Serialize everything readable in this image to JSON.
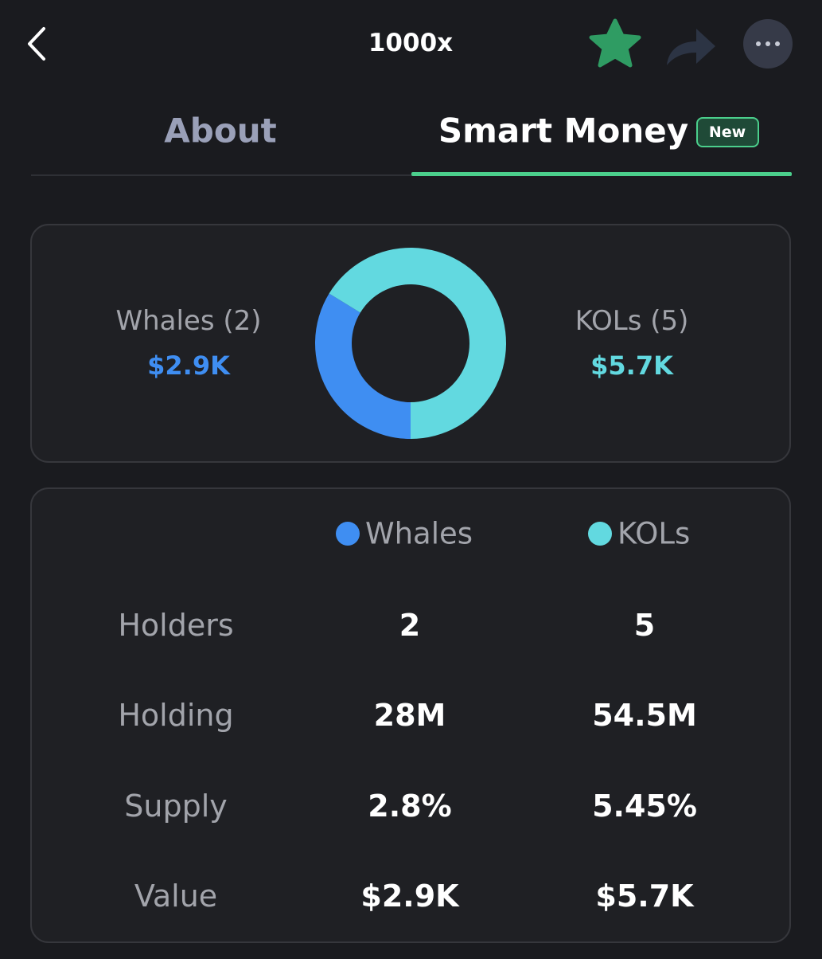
{
  "header": {
    "title": "1000x"
  },
  "tabs": [
    {
      "label": "About"
    },
    {
      "label": "Smart Money",
      "badge": "New"
    }
  ],
  "chart_data": {
    "type": "pie",
    "categories": [
      "Whales (2)",
      "KOLs (5)"
    ],
    "values": [
      2900,
      5700
    ],
    "value_labels": [
      "$2.9K",
      "$5.7K"
    ],
    "colors": [
      "#3f8ef2",
      "#62d9e0"
    ]
  },
  "table": {
    "columns": [
      {
        "name": "Whales",
        "color": "#3f8ef2"
      },
      {
        "name": "KOLs",
        "color": "#62d9e0"
      }
    ],
    "rows": [
      [
        "Holders",
        "2",
        "5"
      ],
      [
        "Holding",
        "28M",
        "54.5M"
      ],
      [
        "Supply",
        "2.8%",
        "5.45%"
      ],
      [
        "Value",
        "$2.9K",
        "$5.7K"
      ]
    ]
  }
}
